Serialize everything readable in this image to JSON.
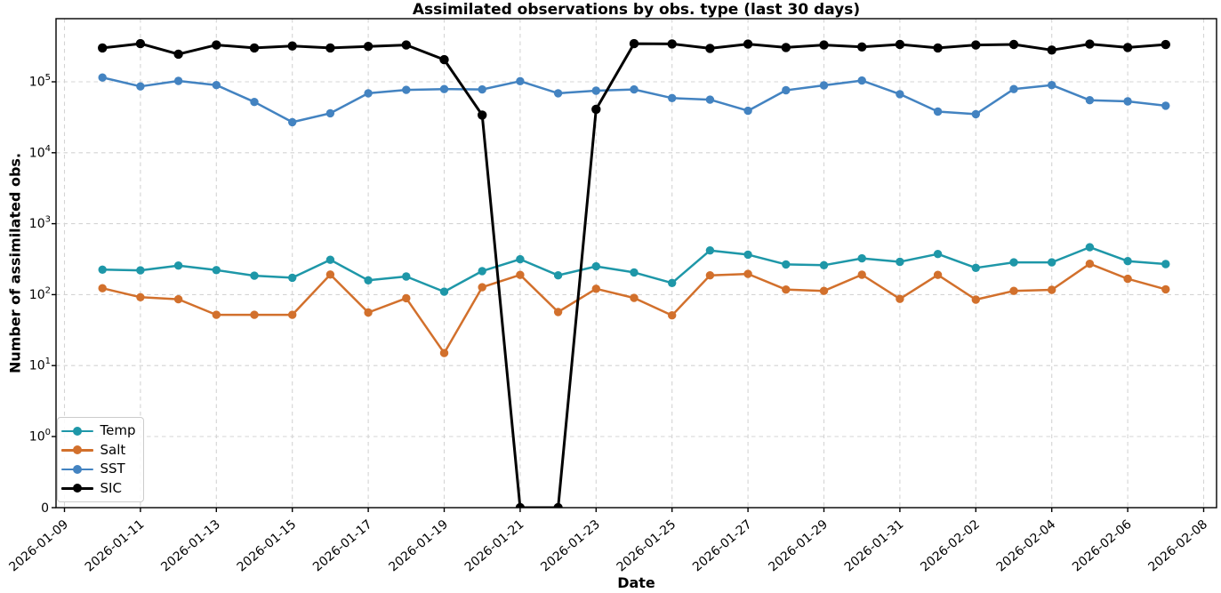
{
  "chart_data": {
    "type": "line",
    "title": "Assimilated observations by obs. type (last 30 days)",
    "xlabel": "Date",
    "ylabel": "Number of assimilated obs.",
    "yscale": "symlog",
    "ylim": [
      0,
      800000
    ],
    "grid": true,
    "legend_position": "lower left",
    "x_tick_labels": [
      "2026-01-09",
      "2026-01-11",
      "2026-01-13",
      "2026-01-15",
      "2026-01-17",
      "2026-01-19",
      "2026-01-21",
      "2026-01-23",
      "2026-01-25",
      "2026-01-27",
      "2026-01-29",
      "2026-01-31",
      "2026-02-02",
      "2026-02-04",
      "2026-02-06",
      "2026-02-08"
    ],
    "y_tick_labels": [
      "0",
      "10^0",
      "10^1",
      "10^2",
      "10^3",
      "10^4",
      "10^5"
    ],
    "y_tick_zero_label": "0",
    "y_tick_exponents": [
      0,
      1,
      2,
      3,
      4,
      5
    ],
    "dates": [
      "2026-01-10",
      "2026-01-11",
      "2026-01-12",
      "2026-01-13",
      "2026-01-14",
      "2026-01-15",
      "2026-01-16",
      "2026-01-17",
      "2026-01-18",
      "2026-01-19",
      "2026-01-20",
      "2026-01-21",
      "2026-01-22",
      "2026-01-23",
      "2026-01-24",
      "2026-01-25",
      "2026-01-26",
      "2026-01-27",
      "2026-01-28",
      "2026-01-29",
      "2026-01-30",
      "2026-01-31",
      "2026-02-01",
      "2026-02-02",
      "2026-02-03",
      "2026-02-04",
      "2026-02-05",
      "2026-02-06",
      "2026-02-07"
    ],
    "series": [
      {
        "name": "Temp",
        "color": "#1e97a8",
        "values": [
          225,
          220,
          257,
          222,
          185,
          173,
          310,
          159,
          180,
          110,
          215,
          315,
          187,
          250,
          206,
          146,
          420,
          366,
          267,
          260,
          325,
          290,
          374,
          238,
          285,
          285,
          466,
          297,
          270
        ]
      },
      {
        "name": "Salt",
        "color": "#d2702c",
        "values": [
          123,
          92,
          86,
          52,
          52,
          52,
          192,
          56,
          89,
          15,
          127,
          190,
          57,
          121,
          90,
          51,
          187,
          196,
          118,
          113,
          191,
          87,
          190,
          85,
          113,
          117,
          272,
          167,
          119
        ]
      },
      {
        "name": "SST",
        "color": "#4383c1",
        "values": [
          115000,
          86000,
          103000,
          90000,
          52000,
          27000,
          36000,
          69000,
          77000,
          79000,
          78000,
          102000,
          69000,
          75000,
          78000,
          59000,
          56000,
          39000,
          76000,
          89000,
          104000,
          67000,
          38000,
          35000,
          79000,
          90000,
          55000,
          53000,
          46000
        ]
      },
      {
        "name": "SIC",
        "color": "#000000",
        "values": [
          300000,
          345000,
          245000,
          330000,
          300000,
          320000,
          300000,
          315000,
          330000,
          205000,
          34000,
          0,
          0,
          41000,
          345000,
          342000,
          296000,
          340000,
          305000,
          330000,
          310000,
          336000,
          300000,
          330000,
          336000,
          280000,
          340000,
          305000,
          335000
        ]
      }
    ],
    "style": {
      "grid_color": "#d4d4d4",
      "spine_color": "#000000",
      "background": "#ffffff"
    }
  }
}
